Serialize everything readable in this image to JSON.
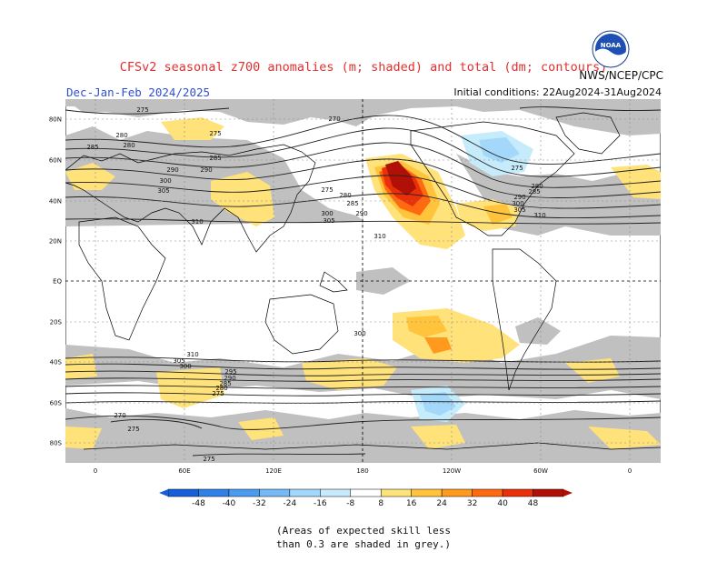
{
  "title": "CFSv2 seasonal z700 anomalies (m; shaded) and total (dm; contours)",
  "season": "Dec-Jan-Feb 2024/2025",
  "initial_conditions": "Initial conditions: 22Aug2024-31Aug2024",
  "agency": "NWS/NCEP/CPC",
  "logo_text": "NOAA",
  "footnote": {
    "line1": "(Areas of expected skill less",
    "line2": "than 0.3 are shaded in grey.)"
  },
  "lat_labels": [
    "80N",
    "60N",
    "40N",
    "20N",
    "EQ",
    "20S",
    "40S",
    "60S",
    "80S"
  ],
  "lon_labels": [
    "0",
    "60E",
    "120E",
    "180",
    "120W",
    "60W",
    "0"
  ],
  "colorbar": {
    "labels": [
      "-48",
      "-40",
      "-32",
      "-24",
      "-16",
      "-8",
      "8",
      "16",
      "24",
      "32",
      "40",
      "48"
    ],
    "colors": [
      "#1560d8",
      "#2f80e8",
      "#4a9cf0",
      "#75b9f5",
      "#a4d8fa",
      "#c6ecfc",
      "#ffffff",
      "#ffe27a",
      "#ffc43c",
      "#ff9a1e",
      "#ff6a10",
      "#e8300a",
      "#b01005"
    ]
  },
  "contour_labels": [
    "275",
    "280",
    "285",
    "290",
    "300",
    "305",
    "310",
    "270",
    "275",
    "280",
    "285",
    "290",
    "300",
    "305",
    "310",
    "275",
    "280",
    "285",
    "290",
    "300",
    "310",
    "305",
    "300",
    "290",
    "285",
    "280",
    "275",
    "270",
    "275",
    "310",
    "305",
    "300",
    "295",
    "290",
    "285",
    "280",
    "275",
    "275"
  ],
  "colors": {
    "title": "#e03030",
    "season": "#3050d0",
    "skill_grey": "#c0c0c0"
  }
}
